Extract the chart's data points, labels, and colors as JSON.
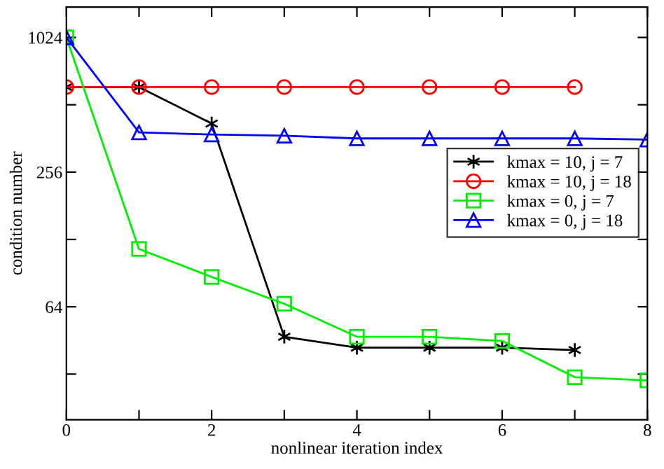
{
  "chart_data": {
    "type": "line",
    "xlabel": "nonlinear iteration index",
    "ylabel": "condition number",
    "x": [
      0,
      1,
      2,
      3,
      4,
      5,
      6,
      7,
      8
    ],
    "series": [
      {
        "name": "kmax = 10, j = 7",
        "color": "#000000",
        "marker": "cross",
        "values": [
          614,
          614,
          422,
          47,
          42,
          42,
          42,
          41,
          null
        ]
      },
      {
        "name": "kmax = 10, j = 18",
        "color": "#ff0000",
        "marker": "circle",
        "values": [
          614,
          614,
          614,
          614,
          614,
          614,
          614,
          614,
          null
        ]
      },
      {
        "name": "kmax = 0, j = 7",
        "color": "#00ee00",
        "marker": "square",
        "values": [
          1024,
          116,
          87,
          66,
          47,
          47,
          45,
          31,
          30
        ]
      },
      {
        "name": "kmax = 0, j = 18",
        "color": "#0000ff",
        "marker": "triangle",
        "values": [
          1024,
          385,
          377,
          372,
          362,
          362,
          362,
          362,
          358
        ]
      }
    ],
    "log": "y",
    "xlim": [
      0,
      8
    ],
    "ylim": [
      20,
      1400
    ],
    "xticks": [
      0,
      {
        "value": 1,
        "label": null
      },
      2,
      {
        "value": 3,
        "label": null
      },
      4,
      {
        "value": 5,
        "label": null
      },
      6,
      {
        "value": 7,
        "label": null
      },
      8
    ],
    "yticks": [
      {
        "value": 32,
        "label": null
      },
      64,
      {
        "value": 128,
        "label": null
      },
      256,
      {
        "value": 512,
        "label": null
      },
      1024
    ],
    "grid": false,
    "legend": "center right",
    "line_style": "solid"
  }
}
